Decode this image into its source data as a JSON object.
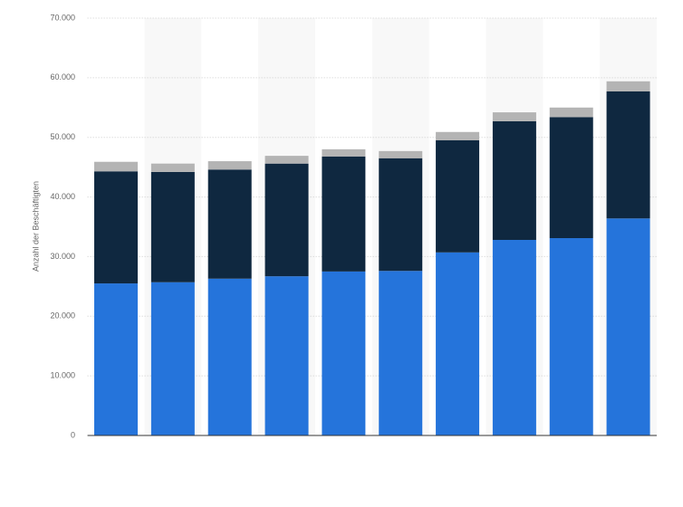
{
  "chart_data": {
    "type": "bar",
    "stacked": true,
    "y_label": "Anzahl der Beschäftigten",
    "categories": [
      null,
      null,
      null,
      null,
      null,
      null,
      null,
      null,
      null,
      null
    ],
    "series": [
      {
        "color": "#2574db",
        "values": [
          25500,
          25700,
          26300,
          26700,
          27500,
          27600,
          30700,
          32800,
          33100,
          36400
        ]
      },
      {
        "color": "#0f2840",
        "values": [
          18800,
          18500,
          18300,
          18900,
          19300,
          18900,
          18800,
          19900,
          20300,
          21300
        ]
      },
      {
        "color": "#b4b4b4",
        "values": [
          1600,
          1400,
          1400,
          1300,
          1200,
          1200,
          1400,
          1500,
          1600,
          1700
        ]
      }
    ],
    "ylim": [
      0,
      70000
    ],
    "yticks": [
      0,
      {
        "value": 10000,
        "label": "10.000"
      },
      {
        "value": 20000,
        "label": "20.000"
      },
      {
        "value": 30000,
        "label": "30.000"
      },
      {
        "value": 40000,
        "label": "40.000"
      },
      {
        "value": 50000,
        "label": "50.000"
      },
      {
        "value": 60000,
        "label": "60.000"
      },
      {
        "value": 70000,
        "label": "70.000"
      }
    ],
    "grid": true
  }
}
